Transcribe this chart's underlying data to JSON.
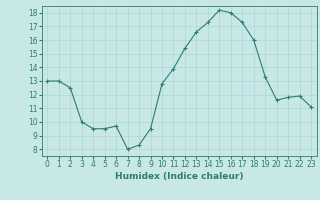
{
  "x": [
    0,
    1,
    2,
    3,
    4,
    5,
    6,
    7,
    8,
    9,
    10,
    11,
    12,
    13,
    14,
    15,
    16,
    17,
    18,
    19,
    20,
    21,
    22,
    23
  ],
  "y": [
    13,
    13,
    12.5,
    10,
    9.5,
    9.5,
    9.7,
    8,
    8.3,
    9.5,
    12.8,
    13.9,
    15.4,
    16.6,
    17.3,
    18.2,
    18,
    17.3,
    16,
    13.3,
    11.6,
    11.8,
    11.9,
    11.1
  ],
  "line_color": "#2e7d6e",
  "marker_color": "#2e7d6e",
  "bg_color": "#c8e8e8",
  "grid_color": "#b0d4d4",
  "xlabel": "Humidex (Indice chaleur)",
  "ylim": [
    7.5,
    18.5
  ],
  "xlim": [
    -0.5,
    23.5
  ],
  "yticks": [
    8,
    9,
    10,
    11,
    12,
    13,
    14,
    15,
    16,
    17,
    18
  ],
  "xticks": [
    0,
    1,
    2,
    3,
    4,
    5,
    6,
    7,
    8,
    9,
    10,
    11,
    12,
    13,
    14,
    15,
    16,
    17,
    18,
    19,
    20,
    21,
    22,
    23
  ],
  "xtick_labels": [
    "0",
    "1",
    "2",
    "3",
    "4",
    "5",
    "6",
    "7",
    "8",
    "9",
    "10",
    "11",
    "12",
    "13",
    "14",
    "15",
    "16",
    "17",
    "18",
    "19",
    "20",
    "21",
    "22",
    "23"
  ],
  "label_fontsize": 6.5,
  "tick_fontsize": 5.5
}
